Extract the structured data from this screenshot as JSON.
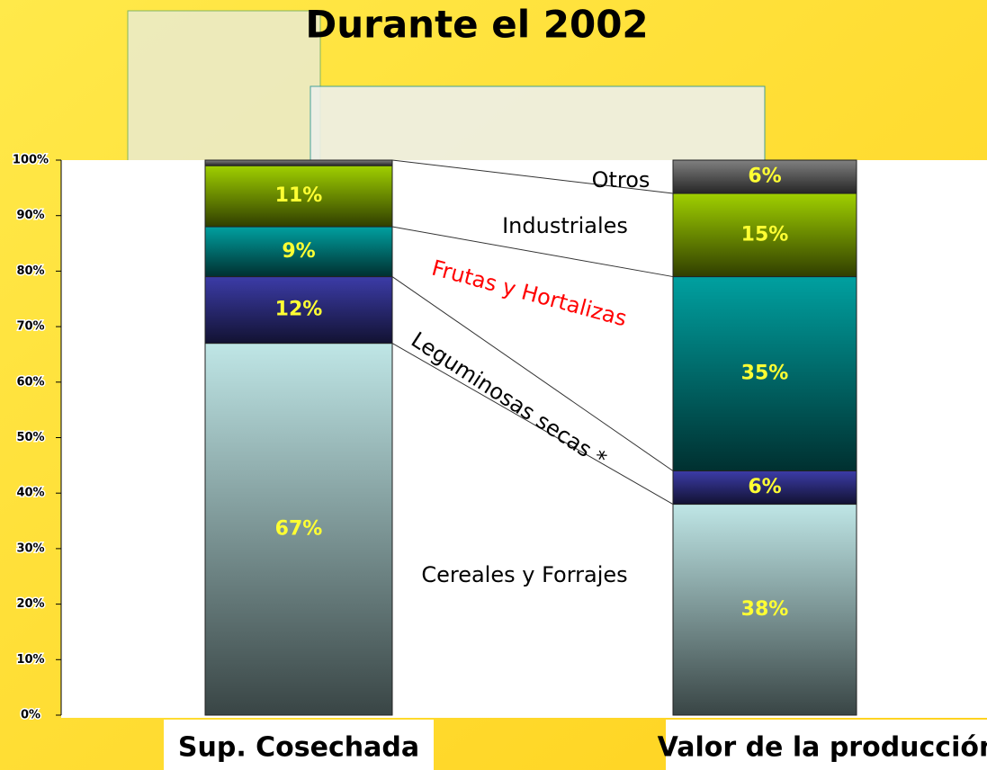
{
  "chart_data": {
    "type": "stacked_bar",
    "title": "Durante el 2002",
    "categories": [
      "Sup. Cosechada",
      "Valor de la producción"
    ],
    "series": [
      {
        "name": "Cereales y Forrajes",
        "color": "#bfe6e6",
        "values": [
          67,
          38
        ],
        "value_labels": [
          "67%",
          "38%"
        ]
      },
      {
        "name": "Leguminosas secas *",
        "color": "#3c3ca8",
        "values": [
          12,
          6
        ],
        "value_labels": [
          "12%",
          "6%"
        ]
      },
      {
        "name": "Frutas y Hortalizas",
        "color": "#00a0a0",
        "values": [
          9,
          35
        ],
        "value_labels": [
          "9%",
          "35%"
        ]
      },
      {
        "name": "Industriales",
        "color": "#a0d000",
        "values": [
          11,
          15
        ],
        "value_labels": [
          "11%",
          "15%"
        ]
      },
      {
        "name": "Otros",
        "color": "#808080",
        "values": [
          1,
          6
        ],
        "value_labels": [
          null,
          "6%"
        ]
      }
    ],
    "ylim": [
      0,
      100
    ],
    "yticks": [
      {
        "value": 0,
        "label": "0%"
      },
      {
        "value": 10,
        "label": "10%"
      },
      {
        "value": 20,
        "label": "20%"
      },
      {
        "value": 30,
        "label": "30%"
      },
      {
        "value": 40,
        "label": "40%"
      },
      {
        "value": 50,
        "label": "50%"
      },
      {
        "value": 60,
        "label": "60%"
      },
      {
        "value": 70,
        "label": "70%"
      },
      {
        "value": 80,
        "label": "80%"
      },
      {
        "value": 90,
        "label": "90%"
      },
      {
        "value": 100,
        "label": "100%"
      }
    ],
    "series_label_colors": [
      "#000000",
      "#000000",
      "#ff0000",
      "#000000",
      "#000000"
    ],
    "value_label_color": "#ffff33"
  }
}
